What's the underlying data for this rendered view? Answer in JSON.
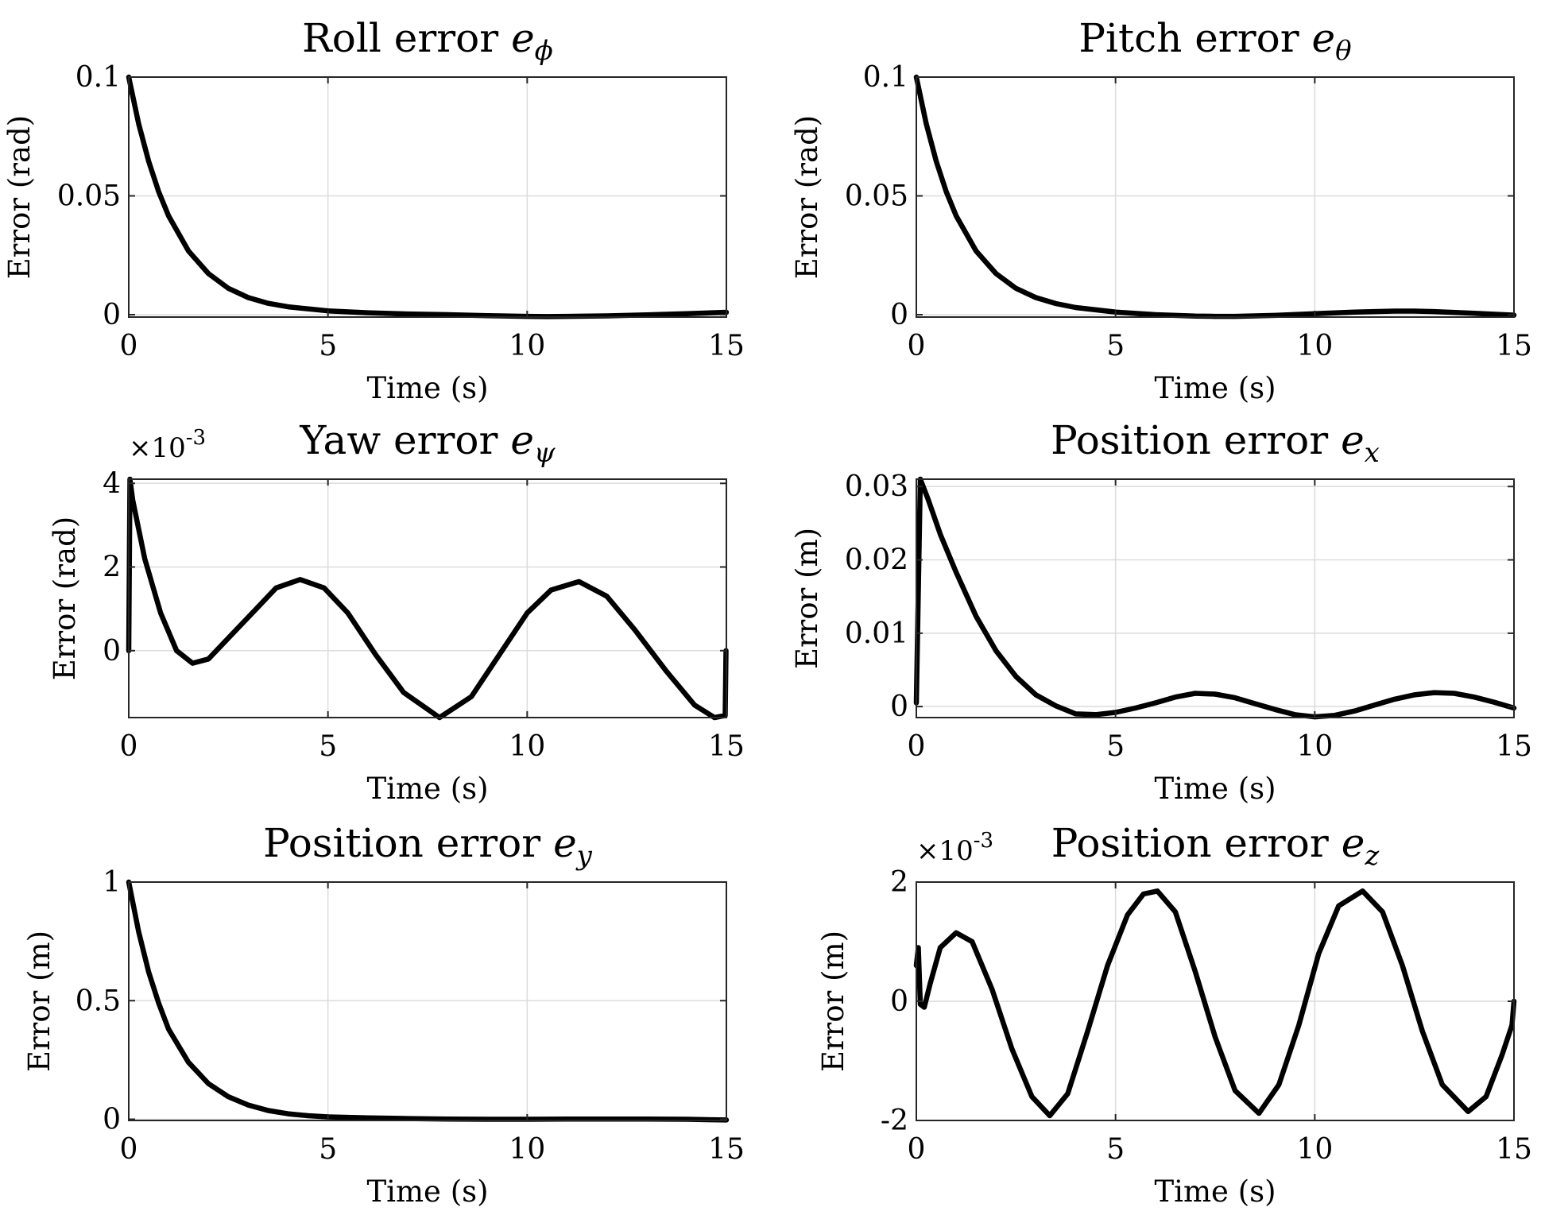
{
  "chart_data": [
    {
      "type": "line",
      "title": "Roll error",
      "title_symbol": "e",
      "title_subscript": "ϕ",
      "xlabel": "Time (s)",
      "ylabel": "Error (rad)",
      "xlim": [
        0,
        15
      ],
      "ylim": [
        -0.001,
        0.1
      ],
      "xticks": [
        0,
        5,
        10,
        15
      ],
      "xtick_labels": [
        "0",
        "5",
        "10",
        "15"
      ],
      "yticks": [
        0,
        0.05,
        0.1
      ],
      "ytick_labels": [
        "0",
        "0.05",
        "0.1"
      ],
      "exponent": "",
      "grid": true,
      "series": [
        {
          "x": [
            0,
            0.25,
            0.5,
            0.75,
            1,
            1.5,
            2,
            2.5,
            3,
            3.5,
            4,
            5,
            6,
            7,
            8,
            9,
            10,
            10.5,
            11,
            12,
            13,
            14,
            15
          ],
          "y": [
            0.1,
            0.0803,
            0.0645,
            0.0518,
            0.0416,
            0.0268,
            0.0173,
            0.0111,
            0.0072,
            0.0048,
            0.0033,
            0.0016,
            0.0008,
            0.0003,
            0,
            -0.0004,
            -0.0007,
            -0.0008,
            -0.0007,
            -0.0005,
            -0.0001,
            0.0004,
            0.001
          ]
        }
      ]
    },
    {
      "type": "line",
      "title": "Pitch error",
      "title_symbol": "e",
      "title_subscript": "θ",
      "xlabel": "Time (s)",
      "ylabel": "Error (rad)",
      "xlim": [
        0,
        15
      ],
      "ylim": [
        -0.001,
        0.1
      ],
      "xticks": [
        0,
        5,
        10,
        15
      ],
      "xtick_labels": [
        "0",
        "5",
        "10",
        "15"
      ],
      "yticks": [
        0,
        0.05,
        0.1
      ],
      "ytick_labels": [
        "0",
        "0.05",
        "0.1"
      ],
      "exponent": "",
      "grid": true,
      "series": [
        {
          "x": [
            0,
            0.25,
            0.5,
            0.75,
            1,
            1.5,
            2,
            2.5,
            3,
            3.5,
            4,
            5,
            6,
            7,
            7.5,
            8,
            9,
            10,
            11,
            12,
            12.5,
            13,
            14,
            15
          ],
          "y": [
            0.1,
            0.0803,
            0.0645,
            0.0518,
            0.0416,
            0.0268,
            0.0173,
            0.0111,
            0.0072,
            0.0047,
            0.003,
            0.0011,
            0,
            -0.0006,
            -0.0007,
            -0.0007,
            -0.0003,
            0.0004,
            0.0011,
            0.0015,
            0.0015,
            0.0013,
            0.0006,
            -0.0002
          ]
        }
      ]
    },
    {
      "type": "line",
      "title": "Yaw error",
      "title_symbol": "e",
      "title_subscript": "ψ",
      "xlabel": "Time (s)",
      "ylabel": "Error (rad)",
      "xlim": [
        0,
        15
      ],
      "ylim": [
        -1.6,
        4.1
      ],
      "xticks": [
        0,
        5,
        10,
        15
      ],
      "xtick_labels": [
        "0",
        "5",
        "10",
        "15"
      ],
      "yticks": [
        0,
        2,
        4
      ],
      "ytick_labels": [
        "0",
        "2",
        "4"
      ],
      "exponent": "-3",
      "grid": true,
      "series": [
        {
          "x": [
            0,
            0.03,
            0.1,
            0.4,
            0.8,
            1.2,
            1.6,
            2.0,
            2.6,
            3.2,
            3.7,
            4.3,
            4.9,
            5.5,
            6.2,
            6.9,
            7.8,
            8.6,
            9.3,
            10.0,
            10.6,
            11.3,
            12.0,
            12.7,
            13.5,
            14.2,
            14.7,
            14.97,
            14.99
          ],
          "y": [
            0,
            4.1,
            3.6,
            2.2,
            0.9,
            0.0,
            -0.3,
            -0.2,
            0.4,
            1.0,
            1.5,
            1.7,
            1.5,
            0.9,
            -0.1,
            -1.0,
            -1.6,
            -1.1,
            -0.1,
            0.9,
            1.45,
            1.65,
            1.3,
            0.5,
            -0.5,
            -1.3,
            -1.6,
            -1.55,
            0
          ]
        }
      ]
    },
    {
      "type": "line",
      "title": "Position error",
      "title_symbol": "e",
      "title_subscript": "x",
      "xlabel": "Time (s)",
      "ylabel": "Error (m)",
      "xlim": [
        0,
        15
      ],
      "ylim": [
        -0.0015,
        0.031
      ],
      "xticks": [
        0,
        5,
        10,
        15
      ],
      "xtick_labels": [
        "0",
        "5",
        "10",
        "15"
      ],
      "yticks": [
        0,
        0.01,
        0.02,
        0.03
      ],
      "ytick_labels": [
        "0",
        "0.01",
        "0.02",
        "0.03"
      ],
      "exponent": "",
      "grid": true,
      "series": [
        {
          "x": [
            0,
            0.1,
            0.3,
            0.6,
            1.0,
            1.5,
            2.0,
            2.5,
            3.0,
            3.5,
            4.0,
            4.5,
            5.0,
            5.5,
            6.0,
            6.5,
            7.0,
            7.5,
            8.0,
            8.5,
            9.0,
            9.5,
            10.0,
            10.5,
            11.0,
            11.5,
            12.0,
            12.5,
            13.0,
            13.5,
            14.0,
            14.5,
            15.0
          ],
          "y": [
            0.0005,
            0.031,
            0.0282,
            0.0235,
            0.0183,
            0.0123,
            0.0076,
            0.0041,
            0.0016,
            0.0001,
            -0.001,
            -0.0011,
            -0.0008,
            -0.0002,
            0.0005,
            0.0013,
            0.0018,
            0.0017,
            0.0012,
            0.0004,
            -0.0004,
            -0.0011,
            -0.0014,
            -0.0012,
            -0.0006,
            0.0002,
            0.001,
            0.0016,
            0.0019,
            0.0018,
            0.0013,
            0.0006,
            -0.0002
          ]
        }
      ]
    },
    {
      "type": "line",
      "title": "Position error",
      "title_symbol": "e",
      "title_subscript": "y",
      "xlabel": "Time (s)",
      "ylabel": "Error (m)",
      "xlim": [
        0,
        15
      ],
      "ylim": [
        -0.005,
        1
      ],
      "xticks": [
        0,
        5,
        10,
        15
      ],
      "xtick_labels": [
        "0",
        "5",
        "10",
        "15"
      ],
      "yticks": [
        0,
        0.5,
        1
      ],
      "ytick_labels": [
        "0",
        "0.5",
        "1"
      ],
      "exponent": "",
      "grid": true,
      "series": [
        {
          "x": [
            0,
            0.25,
            0.5,
            0.75,
            1,
            1.5,
            2,
            2.5,
            3,
            3.5,
            4,
            4.5,
            5,
            6,
            7,
            8,
            9,
            10,
            11,
            12,
            13,
            14,
            15
          ],
          "y": [
            1,
            0.79,
            0.62,
            0.49,
            0.38,
            0.24,
            0.15,
            0.095,
            0.06,
            0.037,
            0.023,
            0.015,
            0.01,
            0.006,
            0.003,
            0.001,
            0,
            0,
            0.001,
            0.001,
            0.001,
            0,
            -0.003
          ]
        }
      ]
    },
    {
      "type": "line",
      "title": "Position error",
      "title_symbol": "e",
      "title_subscript": "z",
      "xlabel": "Time (s)",
      "ylabel": "Error (m)",
      "xlim": [
        0,
        15
      ],
      "ylim": [
        -2,
        2
      ],
      "xticks": [
        0,
        5,
        10,
        15
      ],
      "xtick_labels": [
        "0",
        "5",
        "10",
        "15"
      ],
      "yticks": [
        -2,
        0,
        2
      ],
      "ytick_labels": [
        "-2",
        "0",
        "2"
      ],
      "exponent": "-3",
      "grid": true,
      "series": [
        {
          "x": [
            0,
            0.05,
            0.1,
            0.2,
            0.35,
            0.6,
            1.0,
            1.4,
            1.9,
            2.4,
            2.9,
            3.35,
            3.8,
            4.3,
            4.8,
            5.3,
            5.7,
            6.05,
            6.5,
            7.0,
            7.5,
            8.0,
            8.6,
            9.1,
            9.6,
            10.1,
            10.6,
            11.2,
            11.7,
            12.2,
            12.7,
            13.2,
            13.85,
            14.3,
            14.7,
            14.95,
            15.0
          ],
          "y": [
            0.6,
            0.9,
            -0.05,
            -0.1,
            0.3,
            0.9,
            1.15,
            1.0,
            0.2,
            -0.8,
            -1.6,
            -1.92,
            -1.55,
            -0.5,
            0.6,
            1.45,
            1.8,
            1.85,
            1.5,
            0.5,
            -0.6,
            -1.5,
            -1.88,
            -1.4,
            -0.4,
            0.8,
            1.6,
            1.85,
            1.5,
            0.6,
            -0.5,
            -1.4,
            -1.85,
            -1.6,
            -0.9,
            -0.4,
            0
          ]
        }
      ]
    }
  ]
}
